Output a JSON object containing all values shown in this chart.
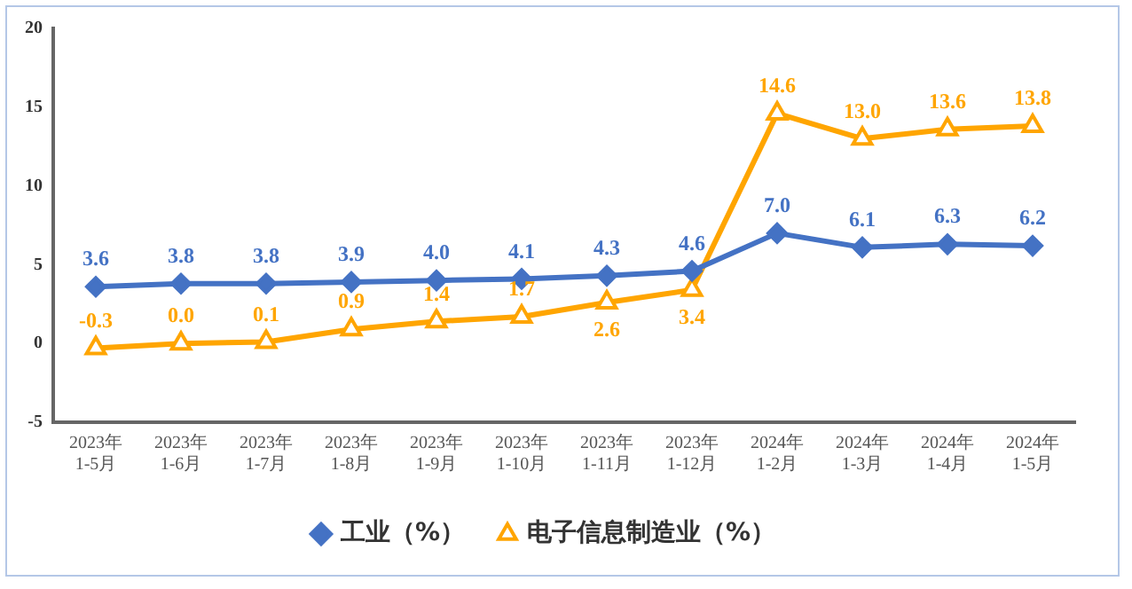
{
  "chart_data": {
    "type": "line",
    "categories": [
      "2023年\n1-5月",
      "2023年\n1-6月",
      "2023年\n1-7月",
      "2023年\n1-8月",
      "2023年\n1-9月",
      "2023年\n1-10月",
      "2023年\n1-11月",
      "2023年\n1-12月",
      "2024年\n1-2月",
      "2024年\n1-3月",
      "2024年\n1-4月",
      "2024年\n1-5月"
    ],
    "series": [
      {
        "name": "工业（%）",
        "color": "#4472c4",
        "marker": "diamond",
        "values": [
          3.6,
          3.8,
          3.8,
          3.9,
          4.0,
          4.1,
          4.3,
          4.6,
          7.0,
          6.1,
          6.3,
          6.2
        ],
        "value_labels": [
          "3.6",
          "3.8",
          "3.8",
          "3.9",
          "4.0",
          "4.1",
          "4.3",
          "4.6",
          "7.0",
          "6.1",
          "6.3",
          "6.2"
        ]
      },
      {
        "name": "电子信息制造业（%）",
        "color": "#ffa500",
        "marker": "triangle",
        "values": [
          -0.3,
          0.0,
          0.1,
          0.9,
          1.4,
          1.7,
          2.6,
          3.4,
          14.6,
          13.0,
          13.6,
          13.8
        ],
        "value_labels": [
          "-0.3",
          "0.0",
          "0.1",
          "0.9",
          "1.4",
          "1.7",
          "2.6",
          "3.4",
          "14.6",
          "13.0",
          "13.6",
          "13.8"
        ]
      }
    ],
    "ylim": [
      -5,
      20
    ],
    "yticks": [
      -5,
      0,
      5,
      10,
      15,
      20
    ],
    "grid": false,
    "legend": "bottom",
    "line_style": "solid"
  }
}
